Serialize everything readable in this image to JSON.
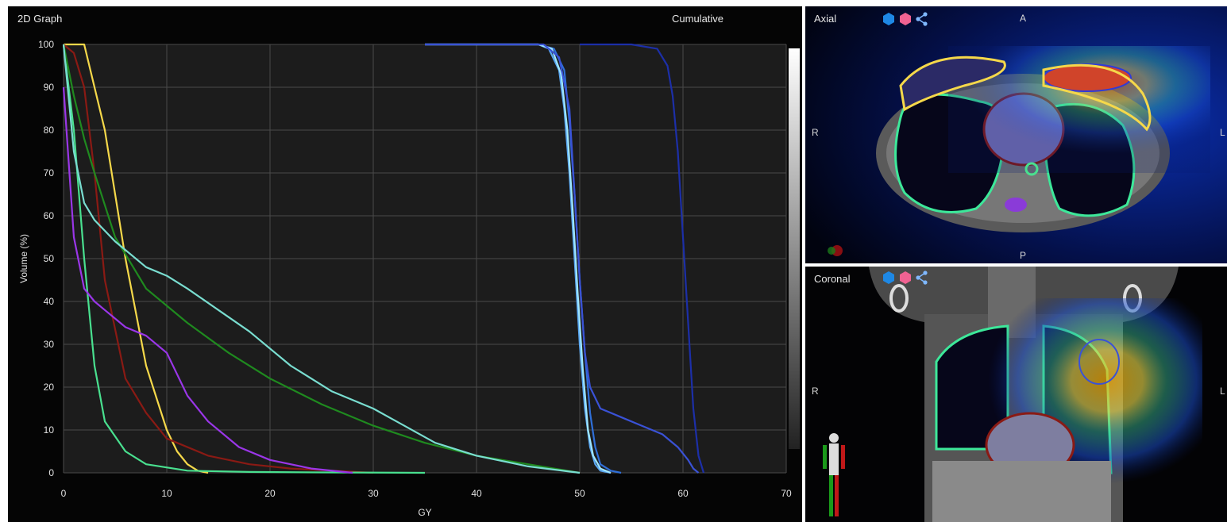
{
  "graph": {
    "title": "2D Graph",
    "mode": "Cumulative"
  },
  "axial": {
    "title": "Axial",
    "orient_top": "A",
    "orient_bottom": "P",
    "orient_left": "R",
    "orient_right": "L",
    "icons": [
      "blue-hexagon-icon",
      "pink-hexagon-icon",
      "share-icon"
    ]
  },
  "coronal": {
    "title": "Coronal",
    "orient_left": "R",
    "orient_right": "L",
    "icons": [
      "blue-hexagon-icon",
      "pink-hexagon-icon",
      "share-icon"
    ]
  },
  "chart_data": {
    "type": "line",
    "title": "2D Graph",
    "xlabel": "GY",
    "ylabel": "Volume (%)",
    "xlim": [
      0,
      70
    ],
    "ylim": [
      0,
      100
    ],
    "xticks": [
      "0",
      "10",
      "20",
      "30",
      "40",
      "50",
      "60",
      "70"
    ],
    "yticks": [
      "0",
      "10",
      "20",
      "30",
      "40",
      "50",
      "60",
      "70",
      "80",
      "90",
      "100"
    ],
    "grid": true,
    "series": [
      {
        "color": "#f5d84a",
        "x": [
          0,
          1,
          2,
          4,
          6,
          8,
          10,
          11,
          12,
          13,
          14
        ],
        "y": [
          100,
          100,
          100,
          80,
          50,
          25,
          10,
          5,
          2,
          0.5,
          0
        ]
      },
      {
        "color": "#8a1a14",
        "x": [
          0,
          1,
          2,
          3,
          4,
          6,
          8,
          10,
          14,
          18,
          22,
          26,
          30
        ],
        "y": [
          100,
          98,
          90,
          70,
          45,
          22,
          14,
          8,
          4,
          2,
          1,
          0.5,
          0
        ]
      },
      {
        "color": "#49e08f",
        "x": [
          0,
          1,
          2,
          3,
          4,
          6,
          8,
          12,
          18,
          25,
          35
        ],
        "y": [
          100,
          80,
          50,
          25,
          12,
          5,
          2,
          0.5,
          0.2,
          0.1,
          0
        ]
      },
      {
        "color": "#9a36e8",
        "x": [
          0,
          1,
          2,
          3,
          4,
          6,
          8,
          10,
          12,
          14,
          17,
          20,
          24,
          28
        ],
        "y": [
          90,
          55,
          43,
          40,
          38,
          34,
          32,
          28,
          18,
          12,
          6,
          3,
          1,
          0
        ]
      },
      {
        "color": "#1f8a1f",
        "x": [
          0,
          1,
          2,
          3,
          5,
          8,
          12,
          16,
          20,
          25,
          30,
          35,
          40,
          45,
          50
        ],
        "y": [
          100,
          88,
          78,
          70,
          55,
          43,
          35,
          28,
          22,
          16,
          11,
          7,
          4,
          2,
          0
        ]
      },
      {
        "color": "#79ddd0",
        "x": [
          0,
          1,
          2,
          3,
          5,
          8,
          10,
          12,
          15,
          18,
          22,
          26,
          30,
          33,
          36,
          40,
          45,
          50
        ],
        "y": [
          100,
          75,
          63,
          59,
          54,
          48,
          46,
          43,
          38,
          33,
          25,
          19,
          15,
          11,
          7,
          4,
          1.5,
          0
        ]
      },
      {
        "color": "#5aa7f2",
        "x": [
          35,
          46,
          47,
          48,
          48.5,
          49,
          49.5,
          50,
          50.5,
          51,
          51.5,
          52,
          53
        ],
        "y": [
          100,
          100,
          99,
          94,
          85,
          70,
          50,
          30,
          15,
          6,
          2,
          0.5,
          0
        ]
      },
      {
        "color": "#2f6fd8",
        "x": [
          35,
          46,
          47.5,
          48.5,
          49,
          49.5,
          50,
          50.5,
          51,
          51.5,
          52,
          53,
          54
        ],
        "y": [
          100,
          100,
          99,
          94,
          82,
          65,
          45,
          28,
          14,
          6,
          2,
          0.5,
          0
        ]
      },
      {
        "color": "#9fe6ff",
        "x": [
          35,
          46,
          47.3,
          48.2,
          48.8,
          49.3,
          49.8,
          50.3,
          50.8,
          51.3,
          52,
          53
        ],
        "y": [
          100,
          100,
          99,
          93,
          80,
          62,
          42,
          24,
          10,
          4,
          1,
          0
        ]
      },
      {
        "color": "#3a52d6",
        "x": [
          35,
          46.5,
          48,
          49,
          49.5,
          50,
          50.5,
          51,
          52,
          54,
          56,
          58,
          59.5,
          60.5,
          61,
          61.5
        ],
        "y": [
          100,
          100,
          97,
          85,
          65,
          45,
          28,
          20,
          15,
          13,
          11,
          9,
          6,
          3,
          1,
          0
        ]
      },
      {
        "color": "#1c2fa8",
        "x": [
          50,
          55,
          57.5,
          58.5,
          59,
          59.5,
          60,
          60.5,
          61,
          61.5,
          62
        ],
        "y": [
          100,
          100,
          99,
          95,
          88,
          75,
          55,
          35,
          15,
          4,
          0
        ]
      }
    ]
  }
}
